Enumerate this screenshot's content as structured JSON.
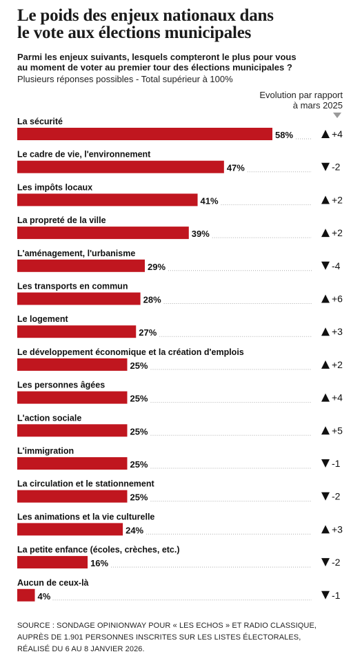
{
  "header": {
    "title_line1": "Le poids des enjeux nationaux dans",
    "title_line2": "le vote aux élections municipales",
    "subtitle_line1": "Parmi les enjeux suivants, lesquels compteront le plus pour vous",
    "subtitle_line2": "au moment de voter au premier tour des élections municipales ?",
    "note": "Plusieurs réponses possibles - Total supérieur à 100%",
    "evolution_line1": "Evolution par rapport",
    "evolution_line2": "à mars 2025"
  },
  "colors": {
    "bar": "#c0161f",
    "dots": "#aaaaaa",
    "arrow": "#111111"
  },
  "chart_data": {
    "type": "bar",
    "orientation": "horizontal",
    "categories": [
      "La sécurité",
      "Le cadre de vie, l'environnement",
      "Les impôts locaux",
      "La propreté de la ville",
      "L'aménagement, l'urbanisme",
      "Les transports en commun",
      "Le logement",
      "Le développement économique et la création d'emplois",
      "Les personnes âgées",
      "L'action sociale",
      "L'immigration",
      "La circulation et le stationnement",
      "Les animations et la vie culturelle",
      "La petite enfance (écoles, crèches, etc.)",
      "Aucun de ceux-là"
    ],
    "values": [
      58,
      47,
      41,
      39,
      29,
      28,
      27,
      25,
      25,
      25,
      25,
      25,
      24,
      16,
      4
    ],
    "value_labels": [
      "58%",
      "47%",
      "41%",
      "39%",
      "29%",
      "28%",
      "27%",
      "25%",
      "25%",
      "25%",
      "25%",
      "25%",
      "24%",
      "16%",
      "4%"
    ],
    "change_direction": [
      "up",
      "down",
      "up",
      "up",
      "down",
      "up",
      "up",
      "up",
      "up",
      "up",
      "down",
      "down",
      "up",
      "down",
      "down"
    ],
    "change_labels": [
      "+4",
      "-2",
      "+2",
      "+2",
      "-4",
      "+6",
      "+3",
      "+2",
      "+4",
      "+5",
      "-1",
      "-2",
      "+3",
      "-2",
      "-1"
    ],
    "xlim": [
      0,
      58
    ]
  },
  "footer": {
    "source_line1": "SOURCE : SONDAGE OPINIONWAY POUR « LES ECHOS » ET RADIO CLASSIQUE,",
    "source_line2": "AUPRÈS DE 1.901 PERSONNES INSCRITES SUR LES LISTES ÉLECTORALES,",
    "source_line3": "RÉALISÉ DU 6 AU 8 JANVIER 2026."
  }
}
